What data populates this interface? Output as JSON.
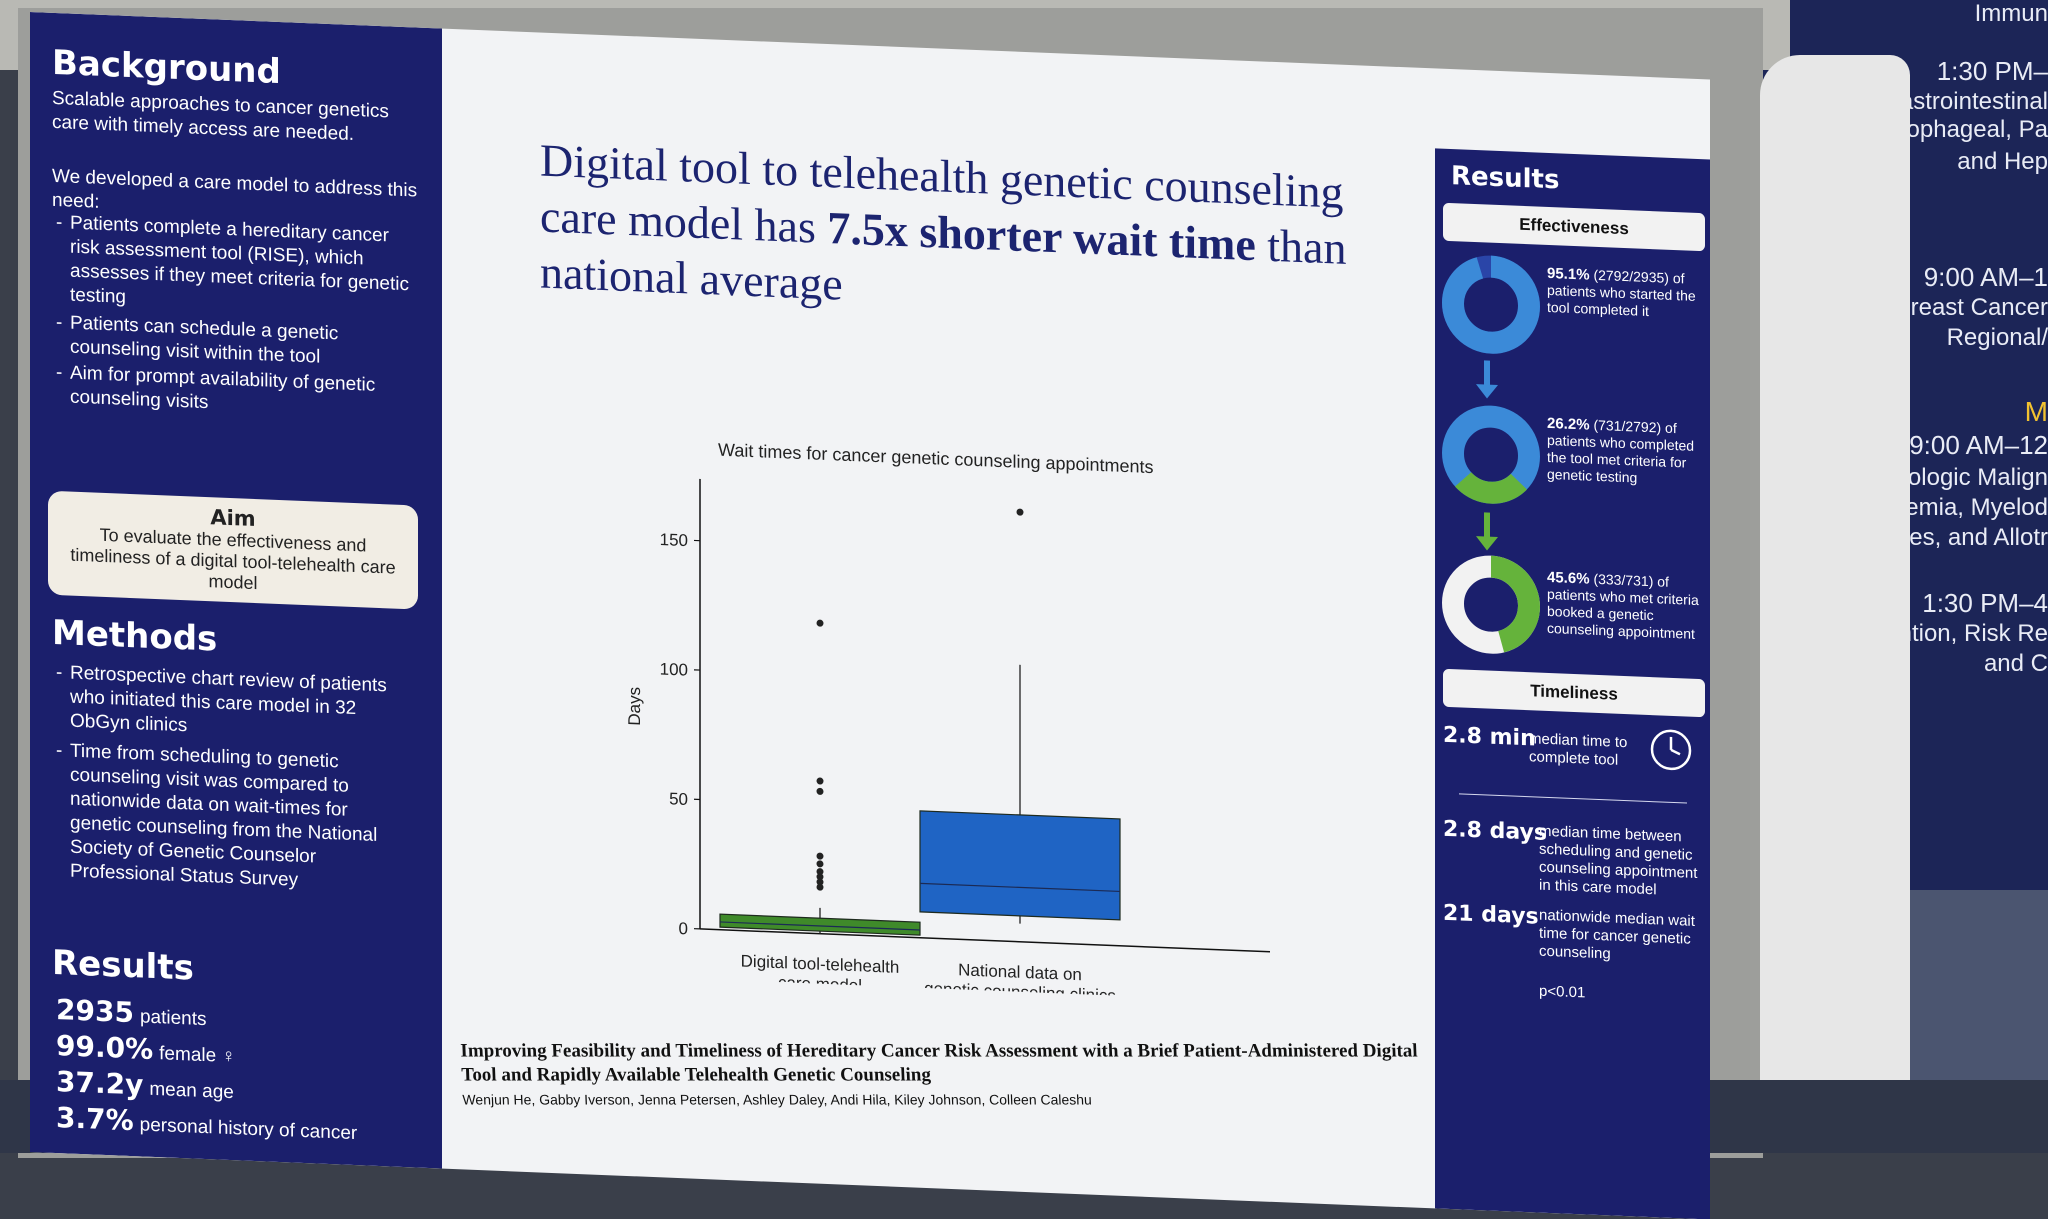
{
  "schedule": [
    {
      "text": "Immun",
      "cls": "ln"
    },
    {
      "text": "1:30 PM–",
      "cls": "ln time"
    },
    {
      "text": "Gastrointestinal",
      "cls": "ln"
    },
    {
      "text": "Gastroesophageal, Pa",
      "cls": "ln"
    },
    {
      "text": "and Hep",
      "cls": "ln"
    },
    {
      "text": "9:00 AM–1",
      "cls": "ln time"
    },
    {
      "text": "Breast Cancer",
      "cls": "ln"
    },
    {
      "text": "Regional/",
      "cls": "ln"
    },
    {
      "text": "M",
      "cls": "ln gold"
    },
    {
      "text": "9:00 AM–12",
      "cls": "ln time"
    },
    {
      "text": "Hematologic Malign",
      "cls": "ln"
    },
    {
      "text": "Leukemia, Myelod",
      "cls": "ln"
    },
    {
      "text": "ndromes, and Allotr",
      "cls": "ln"
    },
    {
      "text": "1:30 PM–4",
      "cls": "ln time"
    },
    {
      "text": "Prevention, Risk Re",
      "cls": "ln"
    },
    {
      "text": "and C",
      "cls": "ln"
    }
  ],
  "left": {
    "background_heading": "Background",
    "background_text": "Scalable approaches to cancer genetics care with timely access are needed.",
    "model_intro": "We developed a care model to address this need:",
    "model_bullets": [
      "Patients complete a hereditary cancer risk assessment tool (RISE), which assesses if they meet criteria for genetic testing",
      "Patients can schedule a genetic counseling visit within the tool",
      "Aim for prompt availability of genetic counseling visits"
    ],
    "aim_title": "Aim",
    "aim_text": "To evaluate the effectiveness and timeliness of a digital tool-telehealth care model",
    "methods_heading": "Methods",
    "methods_bullets": [
      "Retrospective chart review of patients who initiated this care model in 32 ObGyn clinics",
      "Time from scheduling to genetic counseling visit was compared to nationwide data on wait-times for genetic counseling from the National Society of Genetic Counselor Professional Status Survey"
    ],
    "results_heading": "Results",
    "results": [
      {
        "value": "2935",
        "label": "patients"
      },
      {
        "value": "99.0%",
        "label": "female ♀"
      },
      {
        "value": "37.2y",
        "label": "mean age"
      },
      {
        "value": "3.7%",
        "label": "personal history of cancer"
      }
    ]
  },
  "main": {
    "title_part1": "Digital tool to telehealth genetic counseling care model has ",
    "title_bold": "7.5x shorter wait time",
    "title_part2": " than national average",
    "footer_title": "Improving Feasibility and Timeliness of Hereditary Cancer Risk Assessment with a Brief Patient-Administered Digital Tool and Rapidly Available Telehealth Genetic Counseling",
    "footer_authors": "Wenjun He, Gabby Iverson, Jenna Petersen, Ashley Daley, Andi Hila, Kiley Johnson, Colleen Caleshu"
  },
  "chart_data": {
    "type": "box",
    "title": "Wait times for cancer genetic counseling appointments",
    "ylabel": "Days",
    "ylim": [
      0,
      170
    ],
    "yticks": [
      0,
      50,
      100,
      150
    ],
    "categories": [
      "Digital tool-telehealth care model",
      "National data on genetic counseling clinics"
    ],
    "boxes": [
      {
        "name": "Digital tool-telehealth care model",
        "whisker_low": 0,
        "q1": 1,
        "median": 3,
        "q3": 6,
        "whisker_high": 10,
        "outliers": [
          18,
          20,
          22,
          24,
          27,
          30,
          55,
          59,
          120
        ],
        "color": "#3f8a2a"
      },
      {
        "name": "National data on genetic counseling clinics",
        "whisker_low": 7,
        "q1": 10,
        "median": 21,
        "q3": 49,
        "whisker_high": 107,
        "outliers": [
          166
        ],
        "color": "#1f64c4"
      }
    ]
  },
  "right": {
    "heading": "Results",
    "effectiveness_label": "Effectiveness",
    "stats": [
      {
        "pct": "95.1%",
        "detail": "(2792/2935) of patients who started the tool completed it"
      },
      {
        "pct": "26.2%",
        "detail": "(731/2792) of patients who completed the tool met criteria for genetic testing"
      },
      {
        "pct": "45.6%",
        "detail": "(333/731) of patients who met criteria booked a genetic counseling appointment"
      }
    ],
    "timeliness_label": "Timeliness",
    "timeliness": [
      {
        "value": "2.8 min",
        "text": "median time to complete tool"
      },
      {
        "value": "2.8 days",
        "text": "median time between scheduling and genetic counseling appointment in this care model"
      },
      {
        "value": "21 days",
        "text": "nationwide median wait time for cancer genetic counseling"
      }
    ],
    "pvalue": "p<0.01",
    "colors": {
      "blue": "#3b8ad8",
      "green": "#65b33b",
      "navy": "#1b1f6c"
    }
  }
}
